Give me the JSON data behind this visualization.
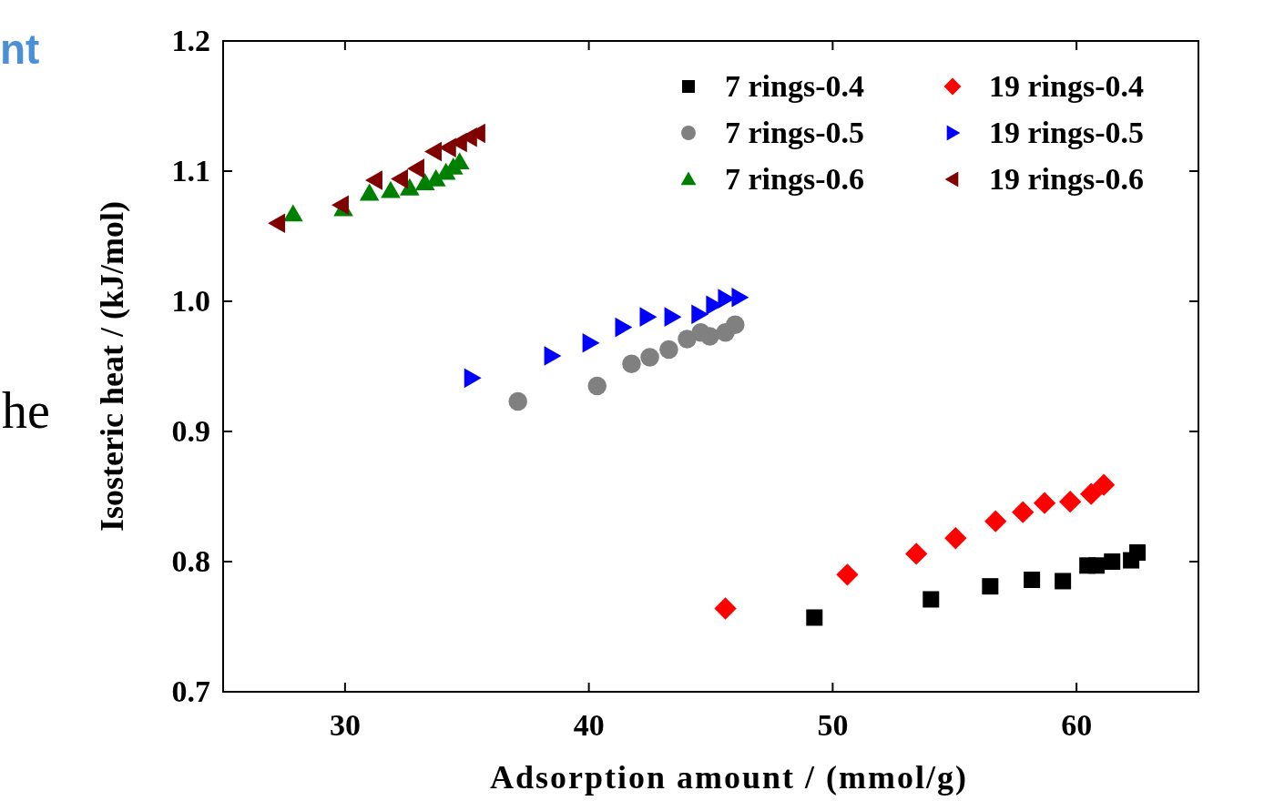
{
  "chart_data": {
    "type": "scatter",
    "xlabel": "Adsorption amount / (mmol/g)",
    "ylabel": "Isosteric heat / (kJ/mol)",
    "xlim": [
      25,
      65
    ],
    "xticks": [
      30,
      40,
      50,
      60
    ],
    "ylim": [
      0.7,
      1.2
    ],
    "yticks": [
      {
        "value": 0.7,
        "label": "0.7"
      },
      {
        "value": 0.8,
        "label": "0.8"
      },
      {
        "value": 0.9,
        "label": "0.9"
      },
      {
        "value": 1.0,
        "label": "1.0"
      },
      {
        "value": 1.1,
        "label": "1.1"
      },
      {
        "value": 1.2,
        "label": "1.2"
      }
    ],
    "grid": false,
    "legend": "top right",
    "annotations": [
      "nt",
      "he"
    ],
    "series": [
      {
        "name": "7 rings-0.4",
        "color": "#000000",
        "marker": "square",
        "x": [
          49.25,
          54.03,
          56.46,
          58.17,
          59.44,
          60.45,
          60.82,
          61.46,
          62.24,
          62.5
        ],
        "values": [
          0.757,
          0.771,
          0.781,
          0.786,
          0.785,
          0.797,
          0.797,
          0.8,
          0.801,
          0.807
        ]
      },
      {
        "name": "7 rings-0.5",
        "color": "#808080",
        "marker": "circle",
        "x": [
          37.09,
          40.34,
          41.75,
          42.5,
          43.28,
          44.03,
          44.59,
          44.96,
          45.6,
          46.0
        ],
        "values": [
          0.923,
          0.935,
          0.952,
          0.957,
          0.963,
          0.971,
          0.976,
          0.973,
          0.976,
          0.982
        ]
      },
      {
        "name": "7 rings-0.6",
        "color": "#008000",
        "marker": "triangle",
        "x": [
          27.87,
          29.93,
          31.0,
          31.87,
          32.65,
          33.28,
          33.73,
          34.14,
          34.44,
          34.7
        ],
        "values": [
          1.067,
          1.071,
          1.083,
          1.085,
          1.087,
          1.091,
          1.094,
          1.099,
          1.103,
          1.107
        ]
      },
      {
        "name": "19 rings-0.4",
        "color": "#ff0000",
        "marker": "diamond",
        "x": [
          45.6,
          50.6,
          53.43,
          55.04,
          56.68,
          57.8,
          58.69,
          59.74,
          60.6,
          61.12
        ],
        "values": [
          0.764,
          0.79,
          0.806,
          0.818,
          0.831,
          0.838,
          0.845,
          0.846,
          0.852,
          0.859
        ]
      },
      {
        "name": "19 rings-0.5",
        "color": "#0000ff",
        "marker": "triangle-right",
        "x": [
          35.19,
          38.47,
          40.04,
          41.38,
          42.39,
          43.4,
          44.51,
          45.11,
          45.6,
          46.16
        ],
        "values": [
          0.941,
          0.958,
          0.968,
          0.98,
          0.988,
          0.988,
          0.99,
          0.997,
          1.002,
          1.003
        ]
      },
      {
        "name": "19 rings-0.6",
        "color": "#800000",
        "marker": "triangle-left",
        "x": [
          27.24,
          29.85,
          31.23,
          32.28,
          32.95,
          33.66,
          34.25,
          34.7,
          35.11,
          35.45
        ],
        "values": [
          1.06,
          1.074,
          1.093,
          1.094,
          1.102,
          1.115,
          1.118,
          1.122,
          1.126,
          1.129
        ]
      }
    ]
  }
}
